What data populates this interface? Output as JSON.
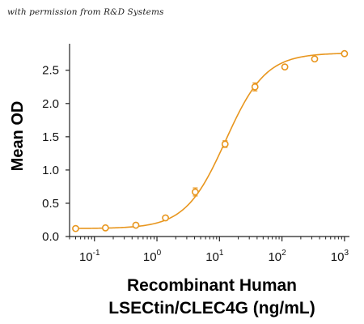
{
  "credit": "with permission from R&D Systems",
  "chart_data": {
    "type": "scatter",
    "title": "",
    "xlabel_line1": "Recombinant Human",
    "xlabel_line2": "LSECtin/CLEC4G (ng/mL)",
    "ylabel": "Mean OD",
    "xscale": "log",
    "xlim": [
      0.04,
      1200
    ],
    "ylim": [
      0,
      2.85
    ],
    "xticks": [
      {
        "value": 0.1,
        "base": "10",
        "exp": "-1"
      },
      {
        "value": 1,
        "base": "10",
        "exp": "0"
      },
      {
        "value": 10,
        "base": "10",
        "exp": "1"
      },
      {
        "value": 100,
        "base": "10",
        "exp": "2"
      },
      {
        "value": 1000,
        "base": "10",
        "exp": "3"
      }
    ],
    "yticks": [
      "0.0",
      "0.5",
      "1.0",
      "1.5",
      "2.0",
      "2.5"
    ],
    "grid": false,
    "color": "#E8961E",
    "series": [
      {
        "x": [
          0.05,
          0.15,
          0.46,
          1.37,
          4.1,
          12.3,
          37,
          111,
          333,
          1000
        ],
        "y": [
          0.12,
          0.13,
          0.17,
          0.28,
          0.67,
          1.39,
          2.25,
          2.55,
          2.67,
          2.75
        ],
        "err": [
          0.01,
          0.01,
          0.02,
          0.02,
          0.06,
          0.05,
          0.06,
          0.03,
          0.02,
          0.02
        ]
      }
    ],
    "fit": "four-parameter logistic"
  }
}
